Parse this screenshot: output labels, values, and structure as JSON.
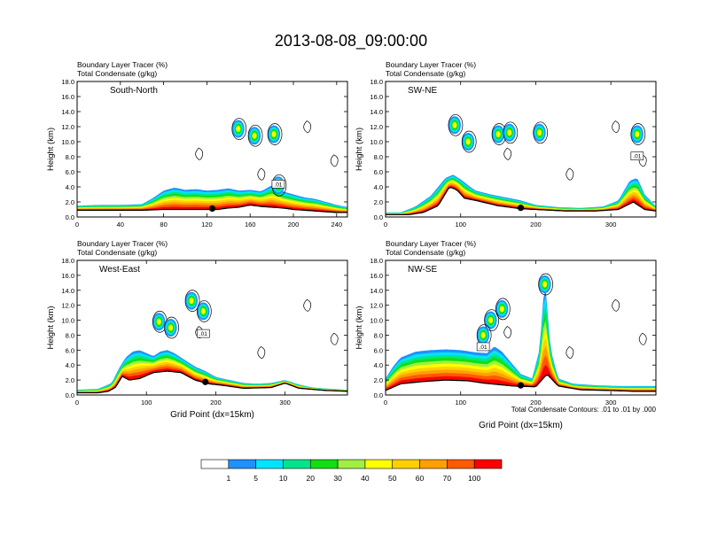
{
  "figure": {
    "title": "2013-08-08_09:00:00",
    "contour_note": "Total Condensate Contours: .01 to .01 by .000",
    "xlabel": "Grid Point (dx=15km)"
  },
  "colorbar": {
    "levels": [
      "1",
      "5",
      "10",
      "20",
      "30",
      "40",
      "50",
      "60",
      "70",
      "100"
    ],
    "colors": [
      "#ffffff",
      "#1e90ff",
      "#00e5ff",
      "#00e58c",
      "#10e010",
      "#a0f040",
      "#ffff00",
      "#ffd000",
      "#ffa000",
      "#ff5a00",
      "#ff0000"
    ]
  },
  "chart_data": [
    {
      "type": "area",
      "title": "South-North",
      "header": [
        "Boundary Layer Tracer   (%)",
        "Total Condensate   (g/kg)"
      ],
      "ylabel": "Height (km)",
      "xlabel": "",
      "ylim": [
        0,
        18
      ],
      "xlim": [
        0,
        250
      ],
      "yticks": [
        "0.0",
        "2.0",
        "4.0",
        "6.0",
        "8.0",
        "10.0",
        "12.0",
        "14.0",
        "16.0",
        "18.0"
      ],
      "xticks": [
        0,
        40,
        80,
        120,
        160,
        200,
        240
      ],
      "marker_x": 125,
      "contour_label": ".01",
      "terrain": [
        [
          0,
          0.9
        ],
        [
          20,
          0.9
        ],
        [
          40,
          0.9
        ],
        [
          60,
          0.9
        ],
        [
          80,
          1.0
        ],
        [
          100,
          1.0
        ],
        [
          120,
          1.0
        ],
        [
          130,
          1.0
        ],
        [
          140,
          1.2
        ],
        [
          150,
          1.3
        ],
        [
          160,
          1.6
        ],
        [
          170,
          1.4
        ],
        [
          180,
          1.3
        ],
        [
          190,
          1.2
        ],
        [
          200,
          1.0
        ],
        [
          220,
          0.8
        ],
        [
          240,
          0.6
        ],
        [
          250,
          0.6
        ]
      ],
      "tracer_top": [
        [
          0,
          1.5
        ],
        [
          20,
          1.6
        ],
        [
          40,
          1.6
        ],
        [
          60,
          1.7
        ],
        [
          70,
          2.5
        ],
        [
          80,
          3.5
        ],
        [
          90,
          3.9
        ],
        [
          100,
          3.6
        ],
        [
          110,
          3.7
        ],
        [
          120,
          3.5
        ],
        [
          130,
          3.6
        ],
        [
          140,
          3.8
        ],
        [
          150,
          3.5
        ],
        [
          160,
          3.6
        ],
        [
          170,
          3.4
        ],
        [
          180,
          4.2
        ],
        [
          190,
          3.4
        ],
        [
          200,
          3.0
        ],
        [
          210,
          2.6
        ],
        [
          220,
          2.4
        ],
        [
          230,
          2.0
        ],
        [
          240,
          1.6
        ],
        [
          250,
          1.3
        ]
      ],
      "cloud_blobs": [
        [
          149,
          11.7
        ],
        [
          164,
          10.8
        ],
        [
          182,
          11.0
        ],
        [
          186,
          4.2
        ]
      ]
    },
    {
      "type": "area",
      "title": "SW-NE",
      "header": [
        "Boundary Layer Tracer   (%)",
        "Total Condensate   (g/kg)"
      ],
      "ylabel": "Height (km)",
      "xlabel": "",
      "ylim": [
        0,
        18
      ],
      "xlim": [
        0,
        360
      ],
      "yticks": [
        "0.0",
        "2.0",
        "4.0",
        "6.0",
        "8.0",
        "10.0",
        "12.0",
        "14.0",
        "16.0",
        "18.0"
      ],
      "xticks": [
        0,
        100,
        200,
        300
      ],
      "marker_x": 180,
      "contour_label": ".01",
      "terrain": [
        [
          0,
          0.3
        ],
        [
          30,
          0.3
        ],
        [
          50,
          0.6
        ],
        [
          70,
          1.5
        ],
        [
          85,
          4.0
        ],
        [
          95,
          3.6
        ],
        [
          105,
          2.5
        ],
        [
          120,
          2.2
        ],
        [
          150,
          1.5
        ],
        [
          180,
          1.1
        ],
        [
          200,
          1.0
        ],
        [
          240,
          0.8
        ],
        [
          280,
          0.8
        ],
        [
          310,
          1.0
        ],
        [
          330,
          2.0
        ],
        [
          345,
          1.0
        ],
        [
          360,
          0.8
        ]
      ],
      "tracer_top": [
        [
          0,
          0.6
        ],
        [
          20,
          0.6
        ],
        [
          40,
          1.4
        ],
        [
          60,
          2.8
        ],
        [
          70,
          4.0
        ],
        [
          80,
          5.2
        ],
        [
          90,
          5.6
        ],
        [
          100,
          5.0
        ],
        [
          110,
          4.2
        ],
        [
          120,
          3.5
        ],
        [
          140,
          3.0
        ],
        [
          160,
          2.6
        ],
        [
          180,
          2.2
        ],
        [
          200,
          1.6
        ],
        [
          230,
          1.3
        ],
        [
          260,
          1.2
        ],
        [
          290,
          1.4
        ],
        [
          310,
          2.2
        ],
        [
          325,
          4.8
        ],
        [
          335,
          5.2
        ],
        [
          345,
          3.0
        ],
        [
          360,
          1.4
        ]
      ],
      "cloud_blobs": [
        [
          92,
          12.2
        ],
        [
          110,
          10.0
        ],
        [
          150,
          11.0
        ],
        [
          165,
          11.2
        ],
        [
          205,
          11.2
        ],
        [
          335,
          11.0
        ]
      ]
    },
    {
      "type": "area",
      "title": "West-East",
      "header": [
        "Boundary Layer Tracer   (%)",
        "Total Condensate   (g/kg)"
      ],
      "ylabel": "Height (km)",
      "xlabel": "Grid Point (dx=15km)",
      "ylim": [
        0,
        18
      ],
      "xlim": [
        0,
        390
      ],
      "yticks": [
        "0.0",
        "2.0",
        "4.0",
        "6.0",
        "8.0",
        "10.0",
        "12.0",
        "14.0",
        "16.0",
        "18.0"
      ],
      "xticks": [
        0,
        100,
        200,
        300
      ],
      "marker_x": 185,
      "contour_label": ".01",
      "terrain": [
        [
          0,
          0.3
        ],
        [
          30,
          0.3
        ],
        [
          45,
          0.5
        ],
        [
          55,
          1.0
        ],
        [
          65,
          2.5
        ],
        [
          75,
          2.0
        ],
        [
          90,
          2.2
        ],
        [
          110,
          3.0
        ],
        [
          130,
          3.2
        ],
        [
          150,
          3.0
        ],
        [
          170,
          2.0
        ],
        [
          190,
          1.5
        ],
        [
          210,
          1.3
        ],
        [
          240,
          0.9
        ],
        [
          280,
          1.0
        ],
        [
          300,
          1.6
        ],
        [
          320,
          0.9
        ],
        [
          360,
          0.6
        ],
        [
          390,
          0.5
        ]
      ],
      "tracer_top": [
        [
          0,
          0.7
        ],
        [
          30,
          0.8
        ],
        [
          50,
          1.6
        ],
        [
          60,
          3.5
        ],
        [
          70,
          5.0
        ],
        [
          80,
          5.8
        ],
        [
          90,
          6.0
        ],
        [
          100,
          5.6
        ],
        [
          110,
          5.2
        ],
        [
          120,
          5.8
        ],
        [
          130,
          6.0
        ],
        [
          140,
          5.6
        ],
        [
          150,
          5.0
        ],
        [
          160,
          4.4
        ],
        [
          170,
          3.8
        ],
        [
          185,
          3.2
        ],
        [
          200,
          2.4
        ],
        [
          220,
          2.0
        ],
        [
          240,
          1.6
        ],
        [
          260,
          1.5
        ],
        [
          280,
          1.6
        ],
        [
          300,
          2.0
        ],
        [
          320,
          1.4
        ],
        [
          340,
          1.0
        ],
        [
          370,
          0.8
        ],
        [
          390,
          0.7
        ]
      ],
      "cloud_blobs": [
        [
          118,
          9.8
        ],
        [
          135,
          9.0
        ],
        [
          165,
          12.6
        ],
        [
          182,
          11.2
        ]
      ]
    },
    {
      "type": "area",
      "title": "NW-SE",
      "header": [
        "Boundary Layer Tracer   (%)",
        "Total Condensate   (g/kg)"
      ],
      "ylabel": "Height (km)",
      "xlabel": "Grid Point (dx=15km)",
      "ylim": [
        0,
        18
      ],
      "xlim": [
        0,
        360
      ],
      "yticks": [
        "0.0",
        "2.0",
        "4.0",
        "6.0",
        "8.0",
        "10.0",
        "12.0",
        "14.0",
        "16.0",
        "18.0"
      ],
      "xticks": [
        0,
        100,
        200,
        300
      ],
      "marker_x": 180,
      "contour_label": ".01",
      "terrain": [
        [
          0,
          0.6
        ],
        [
          20,
          1.5
        ],
        [
          50,
          1.8
        ],
        [
          80,
          2.0
        ],
        [
          110,
          1.9
        ],
        [
          130,
          1.6
        ],
        [
          150,
          1.4
        ],
        [
          170,
          1.2
        ],
        [
          200,
          1.1
        ],
        [
          215,
          2.8
        ],
        [
          230,
          1.2
        ],
        [
          260,
          0.7
        ],
        [
          300,
          0.6
        ],
        [
          330,
          0.5
        ],
        [
          360,
          0.5
        ]
      ],
      "tracer_top": [
        [
          0,
          2.2
        ],
        [
          10,
          3.8
        ],
        [
          20,
          5.0
        ],
        [
          40,
          5.8
        ],
        [
          60,
          6.0
        ],
        [
          80,
          6.1
        ],
        [
          100,
          6.0
        ],
        [
          120,
          5.7
        ],
        [
          135,
          5.6
        ],
        [
          145,
          6.5
        ],
        [
          155,
          5.8
        ],
        [
          165,
          4.6
        ],
        [
          180,
          2.8
        ],
        [
          195,
          2.2
        ],
        [
          205,
          6.0
        ],
        [
          212,
          15.5
        ],
        [
          220,
          6.0
        ],
        [
          230,
          2.2
        ],
        [
          250,
          1.5
        ],
        [
          280,
          1.3
        ],
        [
          310,
          1.2
        ],
        [
          340,
          1.2
        ],
        [
          360,
          1.2
        ]
      ],
      "cloud_blobs": [
        [
          155,
          11.5
        ],
        [
          140,
          10.0
        ],
        [
          212,
          14.8
        ],
        [
          130,
          8.0
        ]
      ]
    }
  ]
}
